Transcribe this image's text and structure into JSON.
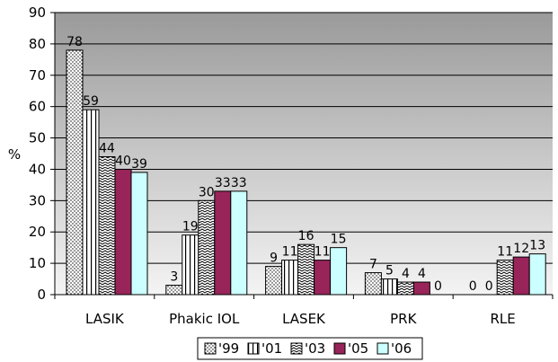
{
  "chart_data": {
    "type": "bar",
    "title": "",
    "xlabel": "",
    "ylabel": "%",
    "ylim": [
      0,
      90
    ],
    "yticks": [
      0,
      10,
      20,
      30,
      40,
      50,
      60,
      70,
      80,
      90
    ],
    "grid": true,
    "legend_position": "bottom",
    "categories": [
      "LASIK",
      "Phakic IOL",
      "LASEK",
      "PRK",
      "RLE"
    ],
    "series": [
      {
        "name": "'99",
        "values": [
          78,
          3,
          9,
          7,
          0
        ],
        "pattern": "dots",
        "color": "#ffffff"
      },
      {
        "name": "'01",
        "values": [
          59,
          19,
          11,
          5,
          0
        ],
        "pattern": "vlines",
        "color": "#ffffff"
      },
      {
        "name": "'03",
        "values": [
          44,
          30,
          16,
          4,
          11
        ],
        "pattern": "zigzag",
        "color": "#ffffff"
      },
      {
        "name": "'05",
        "values": [
          40,
          33,
          11,
          4,
          12
        ],
        "pattern": "solid",
        "color": "#99245a"
      },
      {
        "name": "'06",
        "values": [
          39,
          33,
          15,
          0,
          13
        ],
        "pattern": "solid",
        "color": "#ccffff"
      }
    ],
    "plot_background": "#c0c0c0"
  }
}
